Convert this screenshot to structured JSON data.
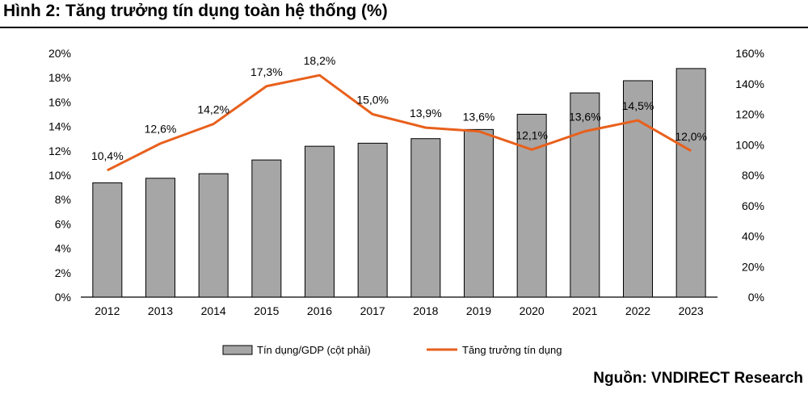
{
  "header": {
    "title": "Hình 2: Tăng trưởng tín dụng toàn hệ thống (%)"
  },
  "footer": {
    "source": "Nguồn: VNDIRECT Research"
  },
  "chart_data": {
    "type": "bar+line",
    "title": "Hình 2: Tăng trưởng tín dụng toàn hệ thống (%)",
    "categories": [
      "2012",
      "2013",
      "2014",
      "2015",
      "2016",
      "2017",
      "2018",
      "2019",
      "2020",
      "2021",
      "2022",
      "2023"
    ],
    "left_axis": {
      "ylim": [
        0,
        20
      ],
      "ticks": [
        "0%",
        "2%",
        "4%",
        "6%",
        "8%",
        "10%",
        "12%",
        "14%",
        "16%",
        "18%",
        "20%"
      ]
    },
    "right_axis": {
      "ylim": [
        0,
        160
      ],
      "ticks": [
        "0%",
        "20%",
        "40%",
        "60%",
        "80%",
        "100%",
        "120%",
        "140%",
        "160%"
      ]
    },
    "series": [
      {
        "name": "Tín dụng/GDP (cột phải)",
        "kind": "bar",
        "axis": "right",
        "color": "#a6a6a6",
        "values": [
          75,
          78,
          81,
          90,
          99,
          101,
          104,
          110,
          120,
          134,
          142,
          150
        ]
      },
      {
        "name": "Tăng trưởng tín dụng",
        "kind": "line",
        "axis": "left",
        "color": "#e8601c",
        "values": [
          10.4,
          12.6,
          14.2,
          17.3,
          18.2,
          15.0,
          13.9,
          13.6,
          12.1,
          13.6,
          14.5,
          12.0
        ],
        "labels": [
          "10,4%",
          "12,6%",
          "14,2%",
          "17,3%",
          "18,2%",
          "15,0%",
          "13,9%",
          "13,6%",
          "12,1%",
          "13,6%",
          "14,5%",
          "12,0%"
        ]
      }
    ],
    "grid": false,
    "legend": "bottom-center"
  }
}
